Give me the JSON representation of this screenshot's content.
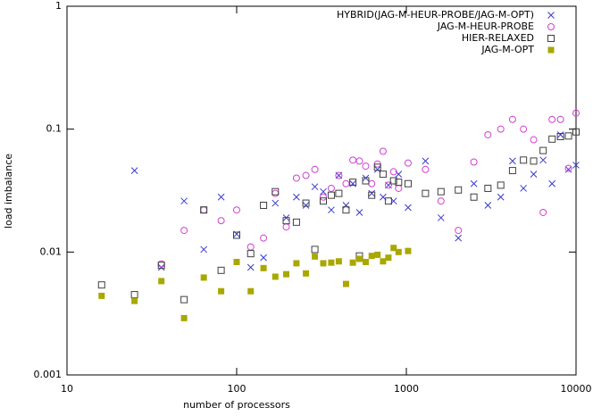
{
  "chart_data": {
    "type": "scatter",
    "xlabel": "number of processors",
    "ylabel": "load imbalance",
    "xscale": "log",
    "yscale": "log",
    "xlim": [
      10,
      10000
    ],
    "ylim": [
      0.001,
      1
    ],
    "xticks": [
      10,
      100,
      1000,
      10000
    ],
    "yticks": [
      0.001,
      0.01,
      0.1,
      1
    ],
    "legend": "upper right",
    "series": [
      {
        "name": "HYBRID(JAG-M-HEUR-PROBE/JAG-M-OPT)",
        "color": "#3a3ad0",
        "marker": "x",
        "x": [
          25,
          36,
          49,
          64,
          81,
          100,
          121,
          144,
          169,
          196,
          225,
          256,
          289,
          324,
          361,
          400,
          441,
          484,
          529,
          576,
          625,
          676,
          729,
          784,
          841,
          900,
          1024,
          1296,
          1600,
          2025,
          2500,
          3025,
          3600,
          4225,
          4900,
          5625,
          6400,
          7225,
          8100,
          9025,
          10000
        ],
        "values": [
          0.046,
          0.0075,
          0.026,
          0.0105,
          0.028,
          0.014,
          0.0075,
          0.009,
          0.025,
          0.019,
          0.028,
          0.024,
          0.034,
          0.031,
          0.022,
          0.042,
          0.024,
          0.036,
          0.021,
          0.04,
          0.03,
          0.047,
          0.028,
          0.035,
          0.026,
          0.043,
          0.023,
          0.055,
          0.019,
          0.013,
          0.036,
          0.024,
          0.028,
          0.055,
          0.033,
          0.043,
          0.056,
          0.036,
          0.09,
          0.047,
          0.051
        ]
      },
      {
        "name": "JAG-M-HEUR-PROBE",
        "color": "#d040d0",
        "marker": "circle",
        "x": [
          36,
          49,
          64,
          81,
          100,
          121,
          144,
          169,
          196,
          225,
          256,
          289,
          324,
          361,
          400,
          441,
          484,
          529,
          576,
          625,
          676,
          729,
          784,
          841,
          900,
          1024,
          1296,
          1600,
          2025,
          2500,
          3025,
          3600,
          4225,
          4900,
          5625,
          6400,
          7225,
          8100,
          9025,
          10000
        ],
        "values": [
          0.008,
          0.015,
          0.022,
          0.018,
          0.022,
          0.011,
          0.013,
          0.03,
          0.016,
          0.04,
          0.042,
          0.047,
          0.028,
          0.033,
          0.042,
          0.036,
          0.056,
          0.055,
          0.05,
          0.036,
          0.052,
          0.066,
          0.035,
          0.045,
          0.033,
          0.053,
          0.047,
          0.026,
          0.015,
          0.054,
          0.09,
          0.1,
          0.12,
          0.1,
          0.082,
          0.021,
          0.12,
          0.12,
          0.048,
          0.135
        ]
      },
      {
        "name": "HIER-RELAXED",
        "color": "#404040",
        "marker": "square",
        "x": [
          16,
          25,
          36,
          49,
          64,
          81,
          100,
          121,
          144,
          169,
          196,
          225,
          256,
          289,
          324,
          361,
          400,
          441,
          484,
          529,
          576,
          625,
          676,
          729,
          784,
          841,
          900,
          1024,
          1296,
          1600,
          2025,
          2500,
          3025,
          3600,
          4225,
          4900,
          5625,
          6400,
          7225,
          8100,
          9025,
          10000
        ],
        "values": [
          0.0054,
          0.0045,
          0.0078,
          0.0041,
          0.022,
          0.0071,
          0.0137,
          0.0097,
          0.024,
          0.031,
          0.018,
          0.0175,
          0.025,
          0.0105,
          0.026,
          0.029,
          0.03,
          0.022,
          0.037,
          0.0093,
          0.038,
          0.029,
          0.049,
          0.043,
          0.026,
          0.038,
          0.037,
          0.036,
          0.03,
          0.031,
          0.032,
          0.028,
          0.033,
          0.035,
          0.046,
          0.056,
          0.055,
          0.067,
          0.083,
          0.087,
          0.088,
          0.095
        ]
      },
      {
        "name": "JAG-M-OPT",
        "color": "#a8a800",
        "marker": "filled-square",
        "x": [
          16,
          25,
          36,
          49,
          64,
          81,
          100,
          121,
          144,
          169,
          196,
          225,
          256,
          289,
          324,
          361,
          400,
          441,
          484,
          529,
          576,
          625,
          676,
          729,
          784,
          841,
          900,
          1024
        ],
        "values": [
          0.0044,
          0.004,
          0.0058,
          0.0029,
          0.0062,
          0.0048,
          0.0083,
          0.0048,
          0.0074,
          0.0063,
          0.0066,
          0.0081,
          0.0067,
          0.0092,
          0.0081,
          0.0082,
          0.0084,
          0.0055,
          0.0082,
          0.0088,
          0.0083,
          0.0093,
          0.0095,
          0.0084,
          0.009,
          0.0108,
          0.01,
          0.0102
        ]
      }
    ]
  }
}
